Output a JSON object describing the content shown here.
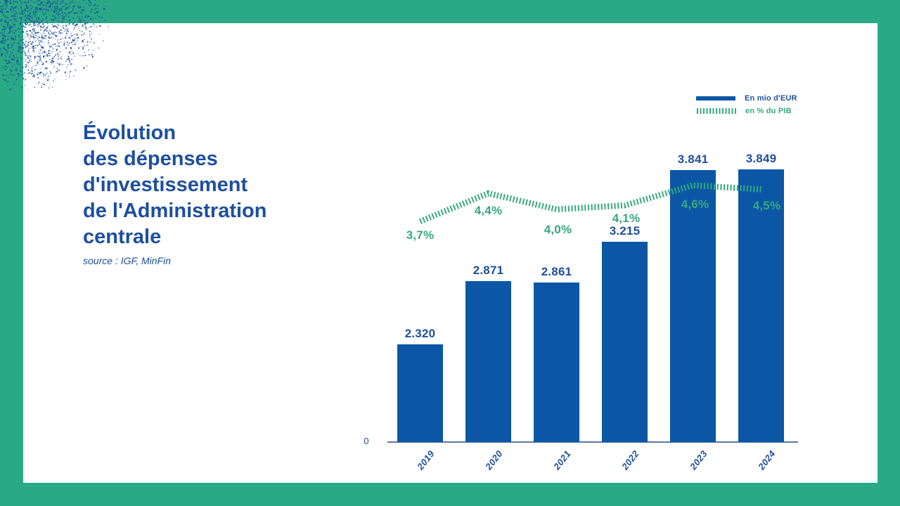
{
  "header": {
    "title": "Évolution\ndes dépenses\nd'investissement\nde l'Administration\ncentrale",
    "source": "source : IGF, MinFin"
  },
  "legend": {
    "items": [
      {
        "label": "En mio d'EUR",
        "swatch": "blue-bar",
        "color": "#0b57a6"
      },
      {
        "label": "en % du PIB",
        "swatch": "green-dashed-line",
        "color": "#36a97d"
      }
    ]
  },
  "colors": {
    "frame_green": "#2aa986",
    "bar_blue": "#0b57a6",
    "text_blue": "#1d4f9e",
    "line_green": "#36a97d",
    "axis_blue": "#5a7a9e",
    "dots_blue": "#1c4f9b",
    "card_white": "#ffffff"
  },
  "chart_data": {
    "type": "bar",
    "categories": [
      "2019",
      "2020",
      "2021",
      "2022",
      "2023",
      "2024"
    ],
    "series": [
      {
        "name": "En mio d'EUR",
        "type": "bar",
        "values": [
          2320,
          2871,
          2861,
          3215,
          3841,
          3849
        ],
        "labels": [
          "2.320",
          "2.871",
          "2.861",
          "3.215",
          "3.841",
          "3.849"
        ]
      },
      {
        "name": "en % du PIB",
        "type": "line",
        "values": [
          3.7,
          4.4,
          4.0,
          4.1,
          4.6,
          4.5
        ],
        "labels": [
          "3,7%",
          "4,4%",
          "4,0%",
          "4,1%",
          "4,6%",
          "4,5%"
        ]
      }
    ],
    "title": "Évolution des dépenses d'investissement de l'Administration centrale",
    "xlabel": "",
    "ylabel": "",
    "y_axis_zero_label": "0",
    "grid": false,
    "legend_position": "top-right"
  }
}
